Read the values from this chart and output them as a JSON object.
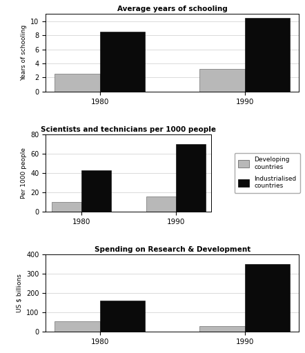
{
  "charts": [
    {
      "title": "Average years of schooling",
      "ylabel": "Years of schooling",
      "ylim": [
        0,
        11
      ],
      "yticks": [
        0,
        2,
        4,
        6,
        8,
        10
      ],
      "years": [
        "1980",
        "1990"
      ],
      "developing": [
        2.5,
        3.2
      ],
      "industrialised": [
        8.5,
        10.5
      ]
    },
    {
      "title": "Scientists and technicians per 1000 people",
      "ylabel": "Per 1000 people",
      "ylim": [
        0,
        80
      ],
      "yticks": [
        0,
        20,
        40,
        60,
        80
      ],
      "years": [
        "1980",
        "1990"
      ],
      "developing": [
        10,
        16
      ],
      "industrialised": [
        43,
        70
      ]
    },
    {
      "title": "Spending on Research & Development",
      "ylabel": "US $ billions",
      "ylim": [
        0,
        400
      ],
      "yticks": [
        0,
        100,
        200,
        300,
        400
      ],
      "years": [
        "1980",
        "1990"
      ],
      "developing": [
        55,
        28
      ],
      "industrialised": [
        160,
        350
      ]
    }
  ],
  "legend_labels": [
    "Developing\ncountries",
    "Industrialised\ncountries"
  ],
  "developing_color": "#b8b8b8",
  "industrialised_color": "#0a0a0a",
  "bar_width": 0.25,
  "x_positions": [
    0.3,
    1.1
  ],
  "background_color": "#ffffff"
}
